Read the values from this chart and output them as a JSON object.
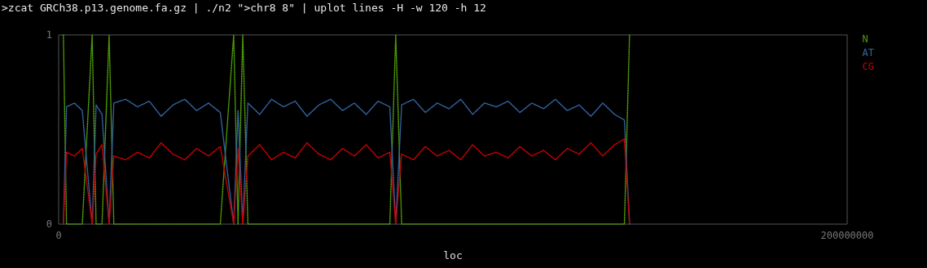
{
  "chart_data": {
    "type": "line",
    "title": ">zcat GRCh38.p13.genome.fa.gz | ./n2 \">chr8 8\" | uplot lines -H -w 120 -h 12",
    "xlabel": "loc",
    "x": [
      1200000,
      2000000,
      4000000,
      6000000,
      8500000,
      9500000,
      11000000,
      12800000,
      14000000,
      17000000,
      20000000,
      23000000,
      26000000,
      29000000,
      32000000,
      35000000,
      38000000,
      41000000,
      44400000,
      45500000,
      46700000,
      48000000,
      51000000,
      54000000,
      57000000,
      60000000,
      63000000,
      66000000,
      69000000,
      72000000,
      75000000,
      78000000,
      81000000,
      84000000,
      85500000,
      87000000,
      90000000,
      93000000,
      96000000,
      99000000,
      102000000,
      105000000,
      108000000,
      111000000,
      114000000,
      117000000,
      120000000,
      123000000,
      126000000,
      129000000,
      132000000,
      135000000,
      138000000,
      141000000,
      143500000,
      144800000
    ],
    "series": [
      {
        "name": "N",
        "color": "#4e9a06",
        "values": [
          1,
          0,
          0,
          0,
          1,
          0,
          0,
          1,
          0,
          0,
          0,
          0,
          0,
          0,
          0,
          0,
          0,
          0,
          1,
          0,
          1,
          0,
          0,
          0,
          0,
          0,
          0,
          0,
          0,
          0,
          0,
          0,
          0,
          0,
          1,
          0,
          0,
          0,
          0,
          0,
          0,
          0,
          0,
          0,
          0,
          0,
          0,
          0,
          0,
          0,
          0,
          0,
          0,
          0,
          0,
          1
        ]
      },
      {
        "name": "AT",
        "color": "#3465a4",
        "values": [
          0,
          0.62,
          0.64,
          0.6,
          0,
          0.63,
          0.58,
          0,
          0.64,
          0.66,
          0.62,
          0.65,
          0.57,
          0.63,
          0.66,
          0.6,
          0.64,
          0.59,
          0,
          0.6,
          0,
          0.64,
          0.58,
          0.66,
          0.62,
          0.65,
          0.57,
          0.63,
          0.66,
          0.6,
          0.64,
          0.58,
          0.65,
          0.62,
          0,
          0.63,
          0.66,
          0.59,
          0.64,
          0.61,
          0.66,
          0.58,
          0.64,
          0.62,
          0.65,
          0.59,
          0.64,
          0.61,
          0.66,
          0.6,
          0.63,
          0.57,
          0.64,
          0.58,
          0.55,
          0
        ]
      },
      {
        "name": "CG",
        "color": "#cc0000",
        "values": [
          0,
          0.38,
          0.36,
          0.4,
          0,
          0.37,
          0.42,
          0,
          0.36,
          0.34,
          0.38,
          0.35,
          0.43,
          0.37,
          0.34,
          0.4,
          0.36,
          0.41,
          0,
          0.4,
          0,
          0.36,
          0.42,
          0.34,
          0.38,
          0.35,
          0.43,
          0.37,
          0.34,
          0.4,
          0.36,
          0.42,
          0.35,
          0.38,
          0,
          0.37,
          0.34,
          0.41,
          0.36,
          0.39,
          0.34,
          0.42,
          0.36,
          0.38,
          0.35,
          0.41,
          0.36,
          0.39,
          0.34,
          0.4,
          0.37,
          0.43,
          0.36,
          0.42,
          0.45,
          0
        ]
      }
    ],
    "xlim": [
      0,
      200000000
    ],
    "xticks": [
      0,
      200000000
    ],
    "ylim": [
      0,
      1
    ],
    "yticks": [
      0,
      1
    ],
    "legend": "top right",
    "marker": "none",
    "line_style": "dotted",
    "grid": false
  }
}
